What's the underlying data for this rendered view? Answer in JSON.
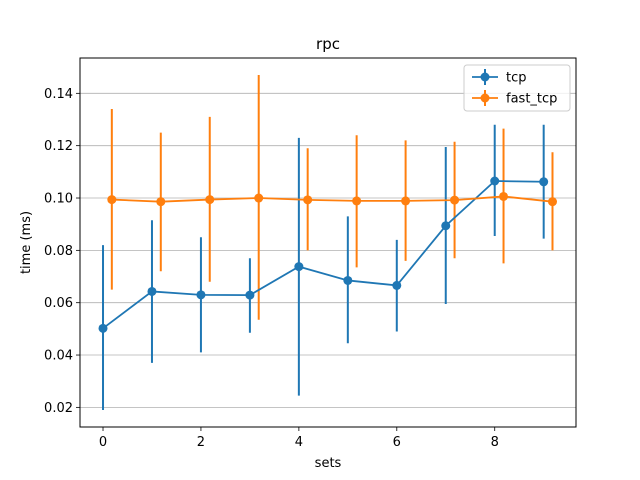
{
  "chart_data": {
    "type": "line",
    "title": "rpc",
    "xlabel": "sets",
    "ylabel": "time (ms)",
    "xlim": [
      -0.47,
      9.66
    ],
    "ylim": [
      0.0125,
      0.1535
    ],
    "xticks": [
      0,
      2,
      4,
      6,
      8
    ],
    "yticks": [
      0.02,
      0.04,
      0.06,
      0.08,
      0.1,
      0.12,
      0.14
    ],
    "ytick_labels": [
      "0.02",
      "0.04",
      "0.06",
      "0.08",
      "0.10",
      "0.12",
      "0.14"
    ],
    "grid": "y",
    "legend_position": "top-right",
    "series": [
      {
        "name": "tcp",
        "color": "#1f77b4",
        "x": [
          0,
          1,
          2,
          3,
          4,
          5,
          6,
          7,
          8,
          9
        ],
        "y": [
          0.0502,
          0.0643,
          0.063,
          0.0629,
          0.0738,
          0.0685,
          0.0666,
          0.0894,
          0.1065,
          0.1062
        ],
        "yerr_low": [
          0.019,
          0.037,
          0.041,
          0.0485,
          0.0245,
          0.0445,
          0.049,
          0.0595,
          0.0855,
          0.0845
        ],
        "yerr_high": [
          0.082,
          0.0915,
          0.085,
          0.077,
          0.123,
          0.093,
          0.084,
          0.1195,
          0.128,
          0.128
        ]
      },
      {
        "name": "fast_tcp",
        "color": "#ff7f0e",
        "x": [
          0.18,
          1.18,
          2.18,
          3.18,
          4.18,
          5.18,
          6.18,
          7.18,
          8.18,
          9.18
        ],
        "y": [
          0.0994,
          0.0986,
          0.0994,
          0.1,
          0.0993,
          0.0989,
          0.0989,
          0.0992,
          0.1006,
          0.0986
        ],
        "yerr_low": [
          0.065,
          0.072,
          0.068,
          0.0535,
          0.08,
          0.0735,
          0.076,
          0.077,
          0.075,
          0.08
        ],
        "yerr_high": [
          0.134,
          0.125,
          0.131,
          0.147,
          0.119,
          0.124,
          0.122,
          0.1215,
          0.1265,
          0.1175
        ]
      }
    ]
  }
}
